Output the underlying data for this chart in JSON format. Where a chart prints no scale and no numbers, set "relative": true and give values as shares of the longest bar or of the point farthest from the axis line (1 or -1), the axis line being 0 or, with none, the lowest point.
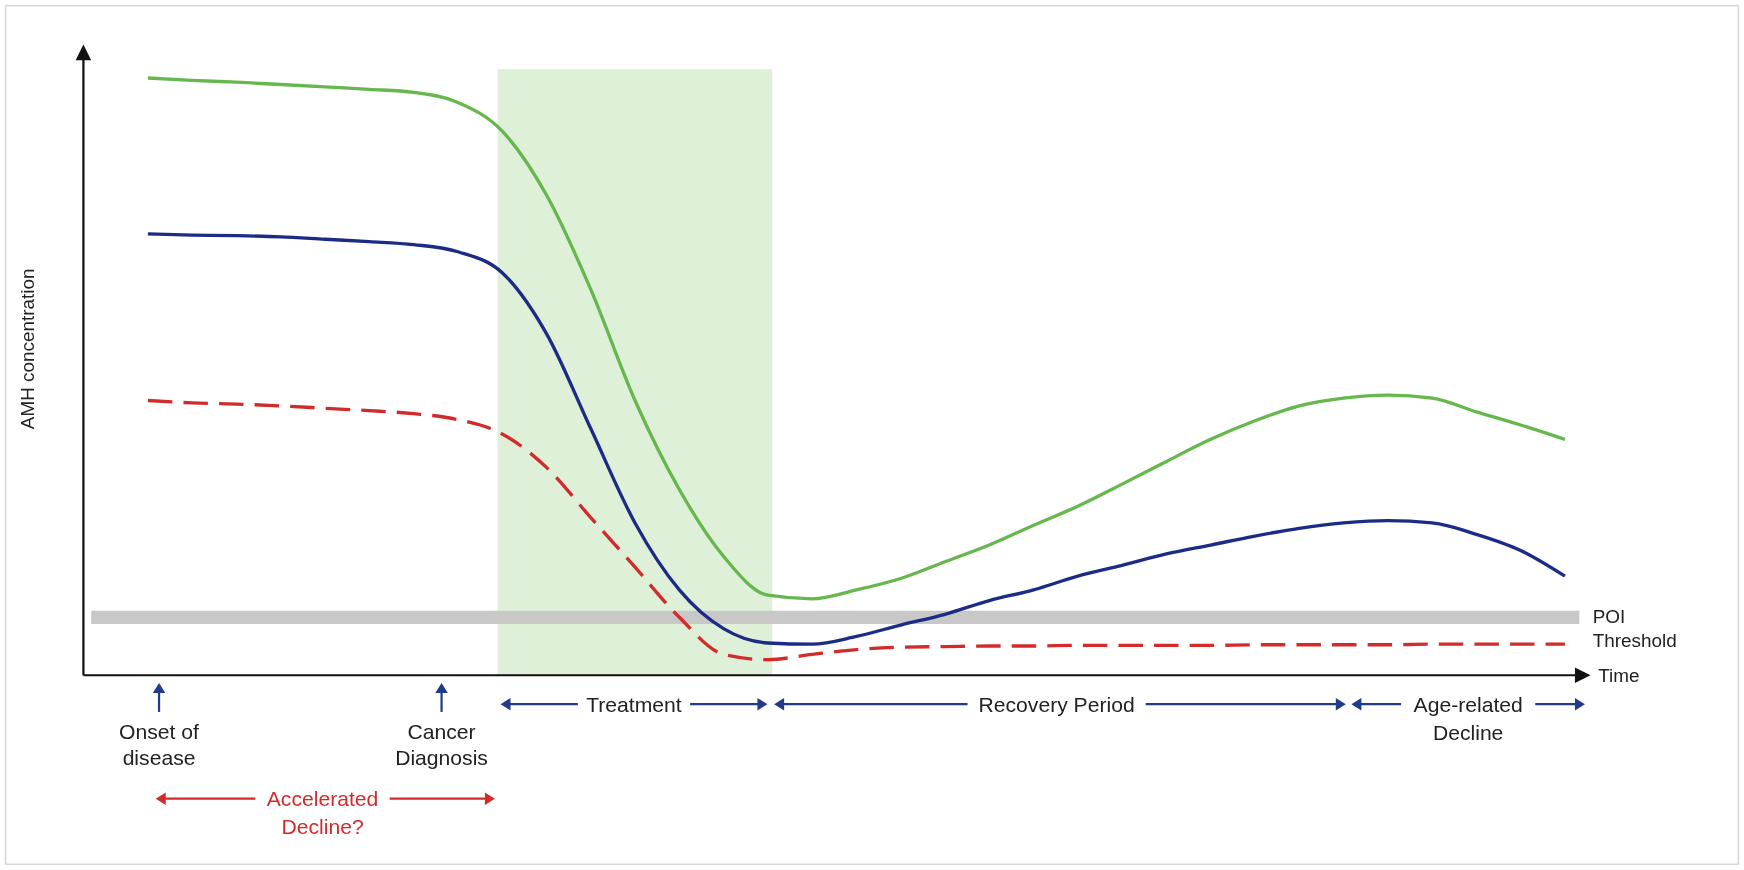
{
  "chart_data": {
    "type": "line",
    "relative": true,
    "ylabel": "AMH concentration",
    "xlabel": "Time",
    "categories": [
      null,
      null,
      null,
      null,
      null,
      null,
      null,
      null,
      null,
      null,
      null,
      null,
      null,
      null,
      null,
      null,
      null,
      null,
      null,
      null,
      null,
      null,
      null,
      null,
      null,
      null,
      null,
      null,
      null,
      null,
      null,
      null,
      null
    ],
    "series": [
      {
        "color": "#66b84e",
        "line_style": "solid",
        "values": [
          1.0,
          0.996,
          0.993,
          0.989,
          0.985,
          0.981,
          0.976,
          0.959,
          0.911,
          0.804,
          0.646,
          0.46,
          0.311,
          0.199,
          0.134,
          0.128,
          0.143,
          0.162,
          0.19,
          0.218,
          0.251,
          0.283,
          0.32,
          0.358,
          0.395,
          0.426,
          0.451,
          0.464,
          0.469,
          0.464,
          0.441,
          0.419,
          0.395
        ]
      },
      {
        "color": "#1c2c86",
        "line_style": "solid",
        "values": [
          0.739,
          0.737,
          0.736,
          0.734,
          0.73,
          0.726,
          0.721,
          0.709,
          0.674,
          0.572,
          0.413,
          0.255,
          0.143,
          0.078,
          0.054,
          0.052,
          0.065,
          0.084,
          0.102,
          0.125,
          0.143,
          0.166,
          0.184,
          0.203,
          0.218,
          0.233,
          0.246,
          0.255,
          0.259,
          0.255,
          0.236,
          0.209,
          0.166
        ]
      },
      {
        "color": "#d22b2b",
        "line_style": "dashed",
        "values": [
          0.46,
          0.456,
          0.454,
          0.451,
          0.447,
          0.443,
          0.438,
          0.428,
          0.404,
          0.348,
          0.264,
          0.181,
          0.097,
          0.035,
          0.026,
          0.035,
          0.043,
          0.047,
          0.048,
          0.049,
          0.049,
          0.05,
          0.05,
          0.05,
          0.05,
          0.051,
          0.051,
          0.051,
          0.051,
          0.052,
          0.052,
          0.052,
          0.052
        ]
      }
    ],
    "ref_lines": [
      {
        "axis": "y",
        "value": 0.097,
        "label": "POI Threshold",
        "color": "#c8c8c8"
      }
    ],
    "annotations": [
      "Onset of disease",
      "Cancer Diagnosis",
      "Treatment",
      "Recovery Period",
      "Age-related Decline",
      "Accelerated Decline?"
    ],
    "grid": false
  }
}
